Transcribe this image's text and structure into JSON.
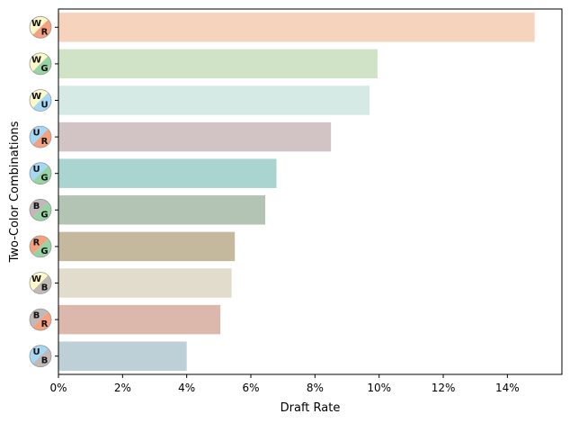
{
  "chart_data": {
    "type": "bar",
    "orientation": "horizontal",
    "xlabel": "Draft Rate",
    "ylabel": "Two-Color Combinations",
    "xlim": [
      0,
      15.7
    ],
    "x_ticks": [
      0,
      2,
      4,
      6,
      8,
      10,
      12,
      14
    ],
    "x_tick_format": "percent",
    "categories": [
      {
        "first": "W",
        "second": "R",
        "first_color": "#fdf8c8",
        "second_color": "#f5a07f",
        "value": 14.85,
        "bar_color": "#f5d3bd"
      },
      {
        "first": "W",
        "second": "G",
        "first_color": "#fdf8c8",
        "second_color": "#98d3a3",
        "value": 9.95,
        "bar_color": "#d0e3c7"
      },
      {
        "first": "W",
        "second": "U",
        "first_color": "#fdf8c8",
        "second_color": "#a5d8f5",
        "value": 9.7,
        "bar_color": "#d5eae5"
      },
      {
        "first": "U",
        "second": "R",
        "first_color": "#a5d8f5",
        "second_color": "#f5a07f",
        "value": 8.5,
        "bar_color": "#d2c4c4"
      },
      {
        "first": "U",
        "second": "G",
        "first_color": "#a5d8f5",
        "second_color": "#98d3a3",
        "value": 6.8,
        "bar_color": "#a9d4cf"
      },
      {
        "first": "B",
        "second": "G",
        "first_color": "#c1b9b7",
        "second_color": "#98d3a3",
        "value": 6.45,
        "bar_color": "#b4c4b4"
      },
      {
        "first": "R",
        "second": "G",
        "first_color": "#f5a07f",
        "second_color": "#98d3a3",
        "value": 5.5,
        "bar_color": "#c4b99d"
      },
      {
        "first": "W",
        "second": "B",
        "first_color": "#fdf8c8",
        "second_color": "#c1b9b7",
        "value": 5.4,
        "bar_color": "#e1dccc"
      },
      {
        "first": "B",
        "second": "R",
        "first_color": "#c1b9b7",
        "second_color": "#f5a07f",
        "value": 5.05,
        "bar_color": "#dbb8ab"
      },
      {
        "first": "U",
        "second": "B",
        "first_color": "#a5d8f5",
        "second_color": "#c1b9b7",
        "value": 4.0,
        "bar_color": "#bdd0d7"
      }
    ],
    "grid": false,
    "legend": "none"
  }
}
